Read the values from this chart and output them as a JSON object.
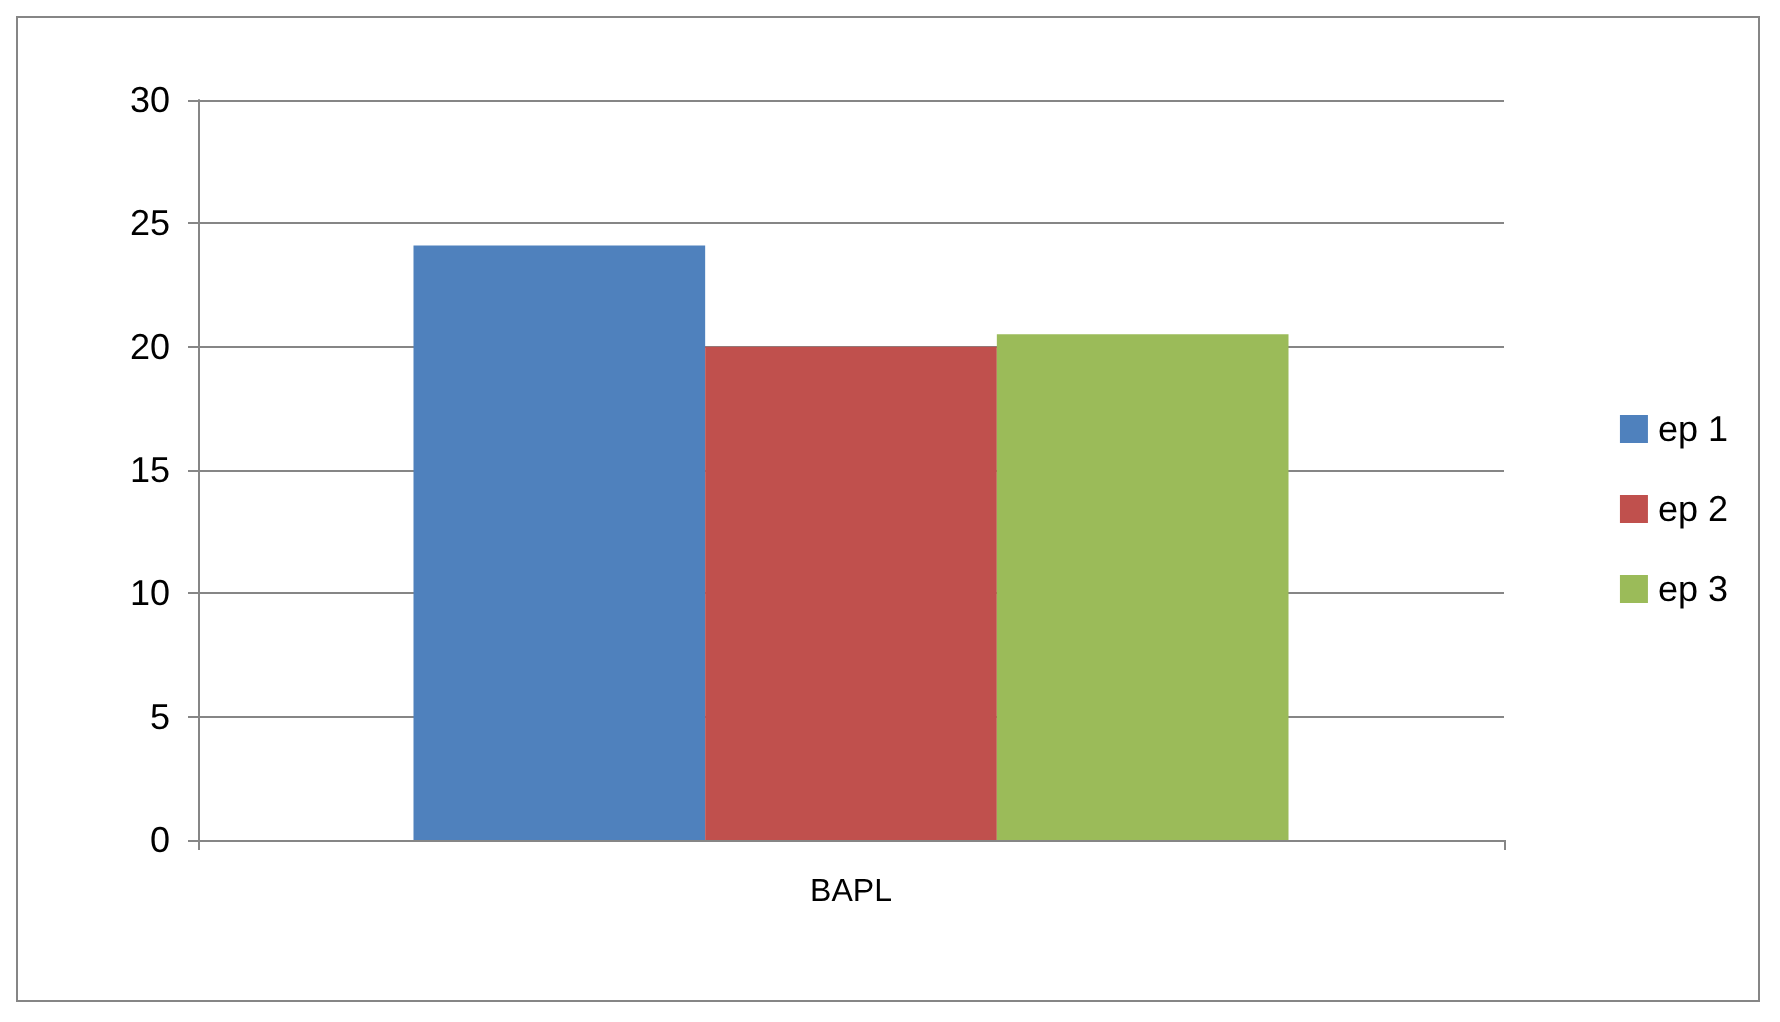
{
  "chart_data": {
    "type": "bar",
    "categories": [
      "BAPL"
    ],
    "series": [
      {
        "name": "ep 1",
        "color": "#4f81bd",
        "values": [
          24.1
        ]
      },
      {
        "name": "ep 2",
        "color": "#c0504d",
        "values": [
          20
        ]
      },
      {
        "name": "ep 3",
        "color": "#9bbb59",
        "values": [
          20.5
        ]
      }
    ],
    "ylim": [
      0,
      30
    ],
    "yticks": [
      0,
      5,
      10,
      15,
      20,
      25,
      30
    ],
    "grid": "y",
    "legend": "right"
  }
}
